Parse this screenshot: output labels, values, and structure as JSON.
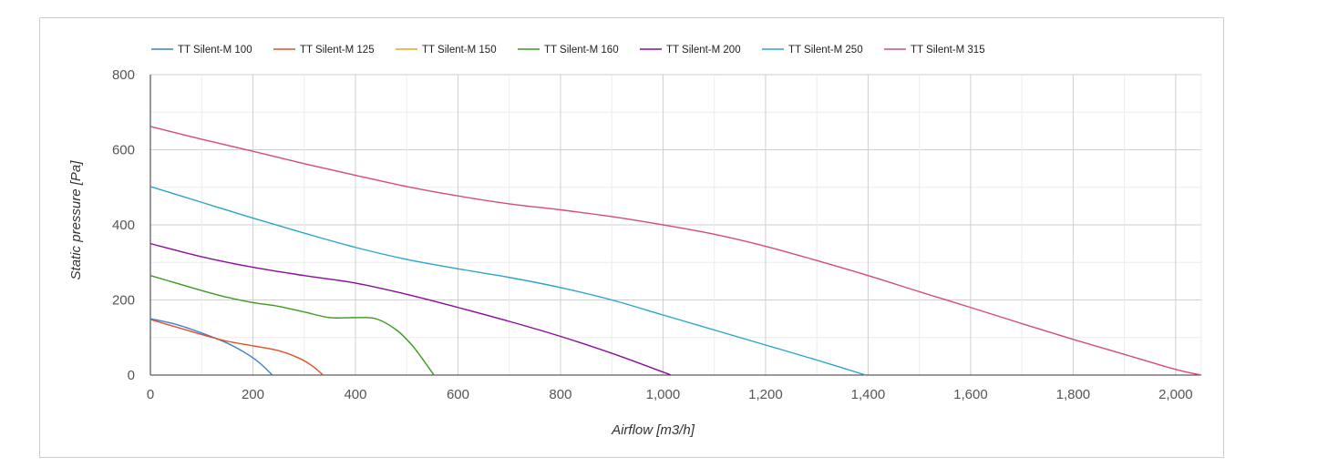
{
  "chart_data": {
    "type": "line",
    "xlabel": "Airflow [m3/h]",
    "ylabel": "Static pressure [Pa]",
    "xlim": [
      0,
      2050
    ],
    "ylim": [
      0,
      800
    ],
    "x_ticks": [
      "0",
      "200",
      "400",
      "600",
      "800",
      "1,000",
      "1,200",
      "1,400",
      "1,600",
      "1,800",
      "2,000"
    ],
    "y_ticks": [
      "0",
      "200",
      "400",
      "600",
      "800"
    ],
    "grid": true,
    "legend_position": "top-left",
    "series": [
      {
        "name": "TT Silent-M 100",
        "color": "#3a7fcf",
        "points": [
          [
            0,
            150
          ],
          [
            50,
            135
          ],
          [
            100,
            112
          ],
          [
            150,
            85
          ],
          [
            190,
            55
          ],
          [
            215,
            30
          ],
          [
            238,
            0
          ]
        ]
      },
      {
        "name": "TT Silent-M 125",
        "color": "#e0502a",
        "points": [
          [
            0,
            148
          ],
          [
            50,
            128
          ],
          [
            100,
            108
          ],
          [
            150,
            90
          ],
          [
            200,
            78
          ],
          [
            250,
            65
          ],
          [
            290,
            45
          ],
          [
            315,
            25
          ],
          [
            337,
            0
          ]
        ]
      },
      {
        "name": "TT Silent-M 150",
        "color": "#f0a020",
        "points": []
      },
      {
        "name": "TT Silent-M 160",
        "color": "#3a9a1e",
        "points": [
          [
            0,
            265
          ],
          [
            50,
            245
          ],
          [
            100,
            225
          ],
          [
            150,
            207
          ],
          [
            200,
            193
          ],
          [
            250,
            183
          ],
          [
            300,
            168
          ],
          [
            350,
            153
          ],
          [
            400,
            153
          ],
          [
            440,
            150
          ],
          [
            480,
            120
          ],
          [
            510,
            80
          ],
          [
            535,
            35
          ],
          [
            553,
            0
          ]
        ]
      },
      {
        "name": "TT Silent-M 200",
        "color": "#8a0c9c",
        "points": [
          [
            0,
            350
          ],
          [
            100,
            315
          ],
          [
            200,
            287
          ],
          [
            300,
            265
          ],
          [
            400,
            245
          ],
          [
            500,
            215
          ],
          [
            600,
            180
          ],
          [
            700,
            143
          ],
          [
            800,
            103
          ],
          [
            900,
            58
          ],
          [
            1000,
            8
          ],
          [
            1015,
            0
          ]
        ]
      },
      {
        "name": "TT Silent-M 250",
        "color": "#2aa5c8",
        "points": [
          [
            0,
            502
          ],
          [
            100,
            460
          ],
          [
            200,
            418
          ],
          [
            300,
            378
          ],
          [
            400,
            340
          ],
          [
            500,
            308
          ],
          [
            600,
            283
          ],
          [
            700,
            260
          ],
          [
            800,
            233
          ],
          [
            900,
            200
          ],
          [
            1000,
            160
          ],
          [
            1100,
            120
          ],
          [
            1200,
            80
          ],
          [
            1300,
            40
          ],
          [
            1395,
            0
          ]
        ]
      },
      {
        "name": "TT Silent-M 315",
        "color": "#d64a7d",
        "points": [
          [
            0,
            662
          ],
          [
            100,
            628
          ],
          [
            200,
            596
          ],
          [
            300,
            563
          ],
          [
            400,
            532
          ],
          [
            500,
            502
          ],
          [
            600,
            477
          ],
          [
            700,
            456
          ],
          [
            800,
            440
          ],
          [
            900,
            422
          ],
          [
            1000,
            400
          ],
          [
            1100,
            375
          ],
          [
            1200,
            343
          ],
          [
            1300,
            305
          ],
          [
            1400,
            265
          ],
          [
            1500,
            222
          ],
          [
            1600,
            180
          ],
          [
            1700,
            137
          ],
          [
            1800,
            95
          ],
          [
            1900,
            55
          ],
          [
            2000,
            15
          ],
          [
            2050,
            0
          ]
        ]
      }
    ]
  }
}
